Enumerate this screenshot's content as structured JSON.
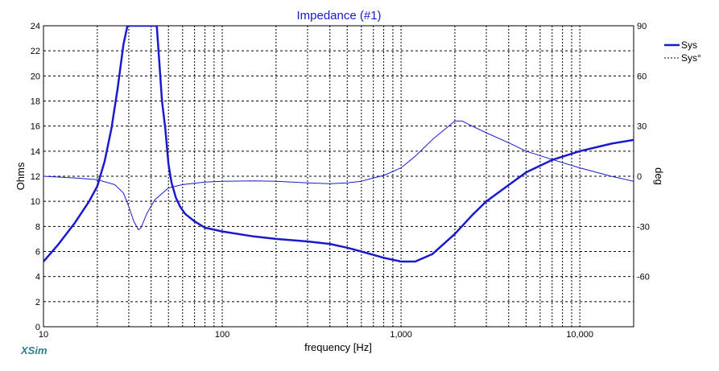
{
  "app": {
    "brand": "XSim"
  },
  "chart_data": {
    "type": "line",
    "title": "Impedance (#1)",
    "xlabel": "frequency [Hz]",
    "ylabel": "Ohms",
    "y2label": "deg",
    "xscale": "log",
    "xlim": [
      10,
      20000
    ],
    "ylim": [
      0,
      24
    ],
    "y2lim": [
      -90,
      90
    ],
    "x_tick_values": [
      10,
      100,
      1000,
      10000
    ],
    "x_tick_labels": [
      "10",
      "100",
      "1,000",
      "10,000"
    ],
    "y_ticks": [
      0,
      2,
      4,
      6,
      8,
      10,
      12,
      14,
      16,
      18,
      20,
      22,
      24
    ],
    "y2_ticks": [
      -60,
      -30,
      0,
      30,
      60,
      90
    ],
    "y2_tick_labels": [
      "-60",
      "-30",
      "0",
      "30",
      "60",
      "90"
    ],
    "grid": true,
    "legend": {
      "position": "top-right"
    },
    "colors": {
      "series": "#1a1acc",
      "grid": "#000000",
      "title": "#1a1acc"
    },
    "series": [
      {
        "name": "Sys",
        "axis": "left",
        "style": "thick",
        "x": [
          10,
          12,
          15,
          18,
          20,
          22,
          24,
          26,
          28,
          29.5,
          30.5,
          43,
          44,
          46,
          48,
          50,
          52,
          55,
          58,
          62,
          70,
          80,
          100,
          150,
          200,
          300,
          400,
          500,
          600,
          800,
          1000,
          1200,
          1500,
          2000,
          2500,
          3000,
          4000,
          5000,
          7000,
          10000,
          15000,
          20000
        ],
        "y": [
          5.2,
          6.5,
          8.3,
          10.0,
          11.2,
          13.2,
          15.8,
          19.0,
          22.5,
          24,
          24,
          24,
          22,
          18,
          15.8,
          13.0,
          11.5,
          10.3,
          9.6,
          9.0,
          8.4,
          7.9,
          7.6,
          7.2,
          7.0,
          6.8,
          6.6,
          6.3,
          6.0,
          5.5,
          5.2,
          5.2,
          5.8,
          7.4,
          8.9,
          10.0,
          11.3,
          12.3,
          13.3,
          14.0,
          14.6,
          14.9
        ]
      },
      {
        "name": "Sys°",
        "axis": "right",
        "style": "thin",
        "x": [
          10,
          15,
          20,
          25,
          28,
          30,
          32,
          34,
          35,
          36,
          38,
          42,
          50,
          60,
          80,
          100,
          150,
          200,
          300,
          400,
          500,
          600,
          700,
          800,
          1000,
          1200,
          1500,
          2000,
          2200,
          2500,
          3000,
          4000,
          5000,
          7000,
          10000,
          15000,
          20000
        ],
        "y": [
          0,
          -1,
          -2,
          -5,
          -10,
          -18,
          -27,
          -32,
          -31,
          -28,
          -22,
          -14,
          -7,
          -5,
          -3.5,
          -3,
          -2.8,
          -3,
          -4,
          -4.5,
          -4,
          -3,
          -1,
          0.5,
          5,
          12,
          22,
          33,
          33,
          30,
          26,
          20,
          15,
          10,
          5,
          0,
          -3
        ]
      }
    ]
  }
}
